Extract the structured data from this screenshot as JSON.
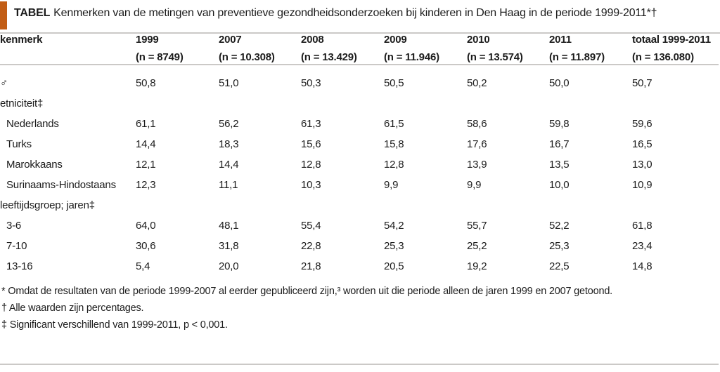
{
  "header": {
    "tag": "TABEL",
    "title": "Kenmerken van de metingen van preventieve gezondheidsonderzoeken bij kinderen in Den Haag in de periode 1999-2011*†"
  },
  "colors": {
    "accent_orange": "#c25d15",
    "rule_gray": "#cbc9c7",
    "text": "#1c1c1c"
  },
  "table": {
    "first_column_header": "kenmerk",
    "columns": [
      {
        "year": "1999",
        "n": "(n = 8749)"
      },
      {
        "year": "2007",
        "n": "(n = 10.308)"
      },
      {
        "year": "2008",
        "n": "(n = 13.429)"
      },
      {
        "year": "2009",
        "n": "(n = 11.946)"
      },
      {
        "year": "2010",
        "n": "(n = 13.574)"
      },
      {
        "year": "2011",
        "n": "(n = 11.897)"
      },
      {
        "year": "totaal 1999-2011",
        "n": "(n = 136.080)"
      }
    ],
    "rows": [
      {
        "label": "♂",
        "indent": false,
        "values": [
          "50,8",
          "51,0",
          "50,3",
          "50,5",
          "50,2",
          "50,0",
          "50,7"
        ]
      },
      {
        "label": "etniciteit‡",
        "indent": false,
        "values": [
          "",
          "",
          "",
          "",
          "",
          "",
          ""
        ]
      },
      {
        "label": "Nederlands",
        "indent": true,
        "values": [
          "61,1",
          "56,2",
          "61,3",
          "61,5",
          "58,6",
          "59,8",
          "59,6"
        ]
      },
      {
        "label": "Turks",
        "indent": true,
        "values": [
          "14,4",
          "18,3",
          "15,6",
          "15,8",
          "17,6",
          "16,7",
          "16,5"
        ]
      },
      {
        "label": "Marokkaans",
        "indent": true,
        "values": [
          "12,1",
          "14,4",
          "12,8",
          "12,8",
          "13,9",
          "13,5",
          "13,0"
        ]
      },
      {
        "label": "Surinaams-Hindostaans",
        "indent": true,
        "values": [
          "12,3",
          "11,1",
          "10,3",
          "9,9",
          "9,9",
          "10,0",
          "10,9"
        ]
      },
      {
        "label": "leeftijdsgroep; jaren‡",
        "indent": false,
        "values": [
          "",
          "",
          "",
          "",
          "",
          "",
          ""
        ]
      },
      {
        "label": "3-6",
        "indent": true,
        "values": [
          "64,0",
          "48,1",
          "55,4",
          "54,2",
          "55,7",
          "52,2",
          "61,8"
        ]
      },
      {
        "label": "7-10",
        "indent": true,
        "values": [
          "30,6",
          "31,8",
          "22,8",
          "25,3",
          "25,2",
          "25,3",
          "23,4"
        ]
      },
      {
        "label": "13-16",
        "indent": true,
        "values": [
          "5,4",
          "20,0",
          "21,8",
          "20,5",
          "19,2",
          "22,5",
          "14,8"
        ]
      }
    ]
  },
  "footnotes": [
    "* Omdat de resultaten van de periode 1999-2007 al eerder gepubliceerd zijn,³ worden uit die periode alleen de jaren 1999 en 2007 getoond.",
    "† Alle waarden zijn percentages.",
    "‡ Significant verschillend van 1999-2011, p < 0,001."
  ]
}
